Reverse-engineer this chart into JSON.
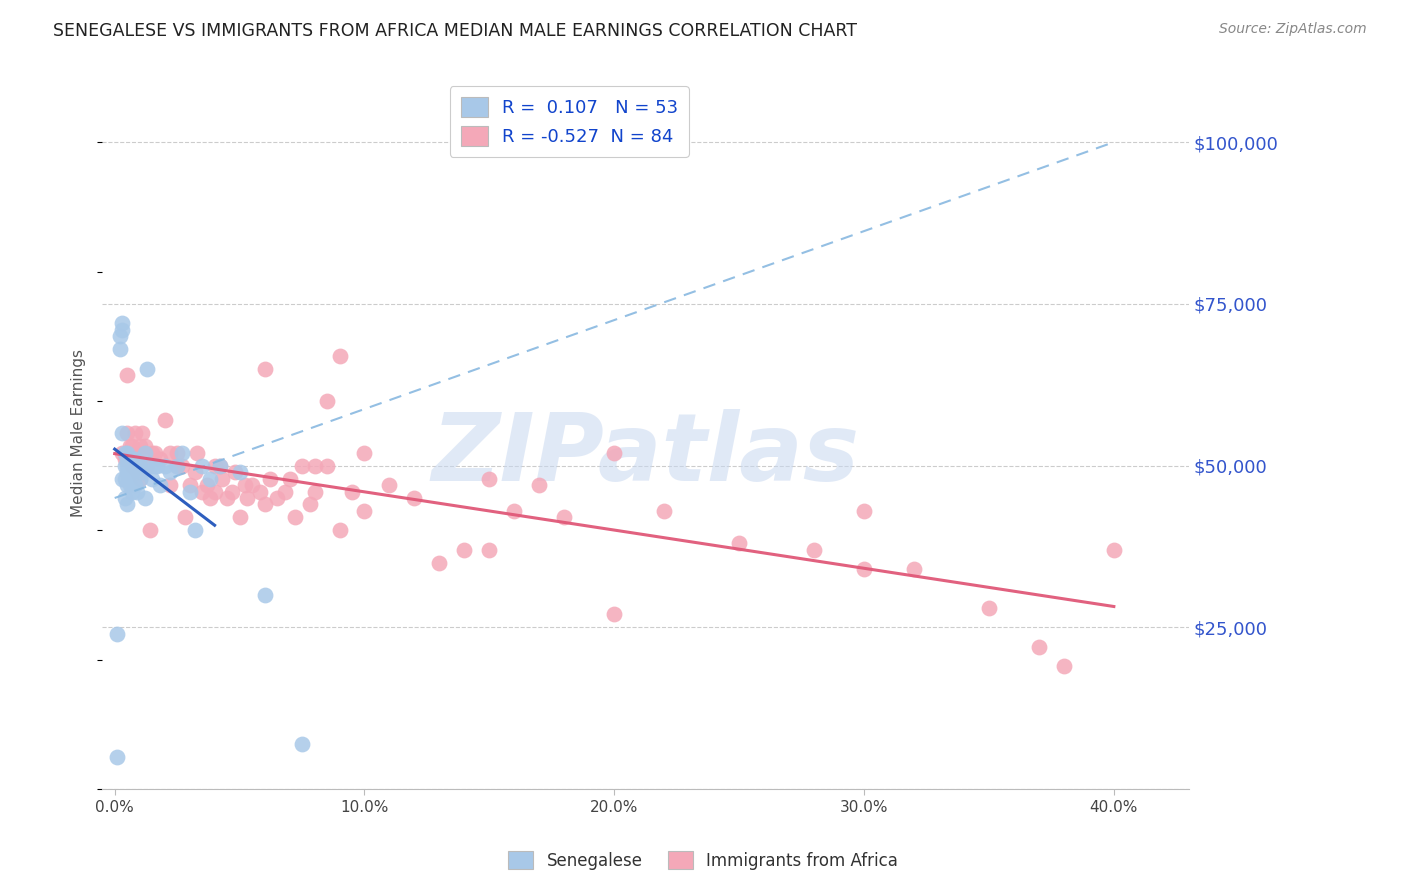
{
  "title": "SENEGALESE VS IMMIGRANTS FROM AFRICA MEDIAN MALE EARNINGS CORRELATION CHART",
  "source": "Source: ZipAtlas.com",
  "xlabel_ticks": [
    "0.0%",
    "10.0%",
    "20.0%",
    "30.0%",
    "40.0%"
  ],
  "xlabel_tick_vals": [
    0.0,
    0.1,
    0.2,
    0.3,
    0.4
  ],
  "ylabel": "Median Male Earnings",
  "ytick_vals": [
    0,
    25000,
    50000,
    75000,
    100000
  ],
  "ytick_labels": [
    "",
    "$25,000",
    "$50,000",
    "$75,000",
    "$100,000"
  ],
  "ylim": [
    0,
    110000
  ],
  "xlim": [
    -0.005,
    0.43
  ],
  "R_blue": 0.107,
  "N_blue": 53,
  "R_pink": -0.527,
  "N_pink": 84,
  "scatter_blue_color": "#a8c8e8",
  "scatter_pink_color": "#f4a8b8",
  "trendline_blue_solid_color": "#2255bb",
  "trendline_blue_dash_color": "#88b8e0",
  "trendline_pink_color": "#e05878",
  "watermark_text": "ZIPatlas",
  "watermark_color": "#c8d8f0",
  "legend_label_blue": "Senegalese",
  "legend_label_pink": "Immigrants from Africa",
  "blue_x": [
    0.001,
    0.001,
    0.002,
    0.002,
    0.003,
    0.003,
    0.003,
    0.003,
    0.004,
    0.004,
    0.004,
    0.004,
    0.005,
    0.005,
    0.005,
    0.005,
    0.005,
    0.005,
    0.006,
    0.006,
    0.006,
    0.007,
    0.007,
    0.007,
    0.007,
    0.008,
    0.008,
    0.008,
    0.009,
    0.009,
    0.01,
    0.01,
    0.011,
    0.012,
    0.012,
    0.013,
    0.014,
    0.015,
    0.016,
    0.017,
    0.018,
    0.02,
    0.022,
    0.025,
    0.027,
    0.03,
    0.032,
    0.035,
    0.038,
    0.042,
    0.05,
    0.06,
    0.075
  ],
  "blue_y": [
    24000,
    5000,
    70000,
    68000,
    72000,
    71000,
    55000,
    48000,
    52000,
    50000,
    48000,
    45000,
    52000,
    51000,
    50000,
    49000,
    47000,
    44000,
    51000,
    49000,
    47000,
    51000,
    50000,
    49000,
    46000,
    51000,
    50000,
    47000,
    50000,
    46000,
    50000,
    48000,
    49000,
    52000,
    45000,
    65000,
    50000,
    48000,
    50000,
    50000,
    47000,
    50000,
    49000,
    50000,
    52000,
    46000,
    40000,
    50000,
    48000,
    50000,
    49000,
    30000,
    7000
  ],
  "pink_x": [
    0.003,
    0.004,
    0.005,
    0.005,
    0.006,
    0.006,
    0.007,
    0.007,
    0.008,
    0.009,
    0.009,
    0.01,
    0.011,
    0.012,
    0.013,
    0.014,
    0.015,
    0.016,
    0.018,
    0.02,
    0.022,
    0.022,
    0.025,
    0.027,
    0.028,
    0.03,
    0.032,
    0.033,
    0.035,
    0.037,
    0.038,
    0.04,
    0.042,
    0.043,
    0.045,
    0.047,
    0.048,
    0.05,
    0.052,
    0.053,
    0.055,
    0.058,
    0.06,
    0.062,
    0.065,
    0.068,
    0.07,
    0.072,
    0.075,
    0.078,
    0.08,
    0.085,
    0.085,
    0.09,
    0.09,
    0.095,
    0.1,
    0.11,
    0.12,
    0.13,
    0.14,
    0.15,
    0.16,
    0.17,
    0.18,
    0.2,
    0.22,
    0.25,
    0.28,
    0.3,
    0.32,
    0.35,
    0.37,
    0.38,
    0.4,
    0.01,
    0.025,
    0.04,
    0.06,
    0.08,
    0.1,
    0.15,
    0.2,
    0.3
  ],
  "pink_y": [
    52000,
    51000,
    64000,
    55000,
    53000,
    51000,
    53000,
    50000,
    55000,
    52000,
    49000,
    53000,
    55000,
    53000,
    50000,
    40000,
    52000,
    52000,
    51000,
    57000,
    47000,
    52000,
    50000,
    50000,
    42000,
    47000,
    49000,
    52000,
    46000,
    47000,
    45000,
    46000,
    50000,
    48000,
    45000,
    46000,
    49000,
    42000,
    47000,
    45000,
    47000,
    46000,
    44000,
    48000,
    45000,
    46000,
    48000,
    42000,
    50000,
    44000,
    46000,
    60000,
    50000,
    67000,
    40000,
    46000,
    43000,
    47000,
    45000,
    35000,
    37000,
    37000,
    43000,
    47000,
    42000,
    27000,
    43000,
    38000,
    37000,
    34000,
    34000,
    28000,
    22000,
    19000,
    37000,
    48000,
    52000,
    50000,
    65000,
    50000,
    52000,
    48000,
    52000,
    43000
  ]
}
